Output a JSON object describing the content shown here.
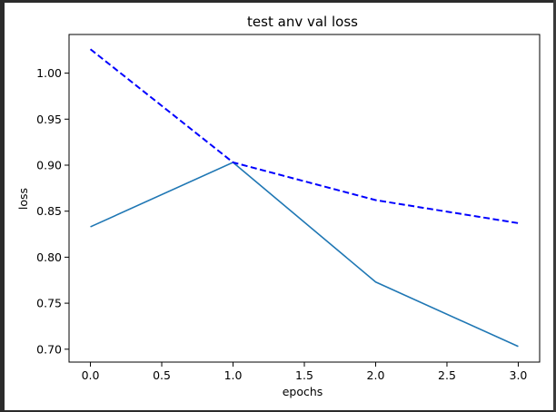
{
  "chart_data": {
    "type": "line",
    "title": "test anv val loss",
    "xlabel": "epochs",
    "ylabel": "loss",
    "x": [
      0.0,
      1.0,
      2.0,
      3.0
    ],
    "xlim": [
      -0.15,
      3.15
    ],
    "ylim": [
      0.686,
      1.042
    ],
    "xticks": [
      0.0,
      0.5,
      1.0,
      1.5,
      2.0,
      2.5,
      3.0
    ],
    "xtick_labels": [
      "0.0",
      "0.5",
      "1.0",
      "1.5",
      "2.0",
      "2.5",
      "3.0"
    ],
    "yticks": [
      0.7,
      0.75,
      0.8,
      0.85,
      0.9,
      0.95,
      1.0
    ],
    "ytick_labels": [
      "0.70",
      "0.75",
      "0.80",
      "0.85",
      "0.90",
      "0.95",
      "1.00"
    ],
    "grid": false,
    "series": [
      {
        "values": [
          0.833,
          0.903,
          0.773,
          0.703
        ],
        "color": "#1f77b4",
        "style": "solid"
      },
      {
        "values": [
          1.026,
          0.903,
          0.862,
          0.837
        ],
        "color": "#0000ff",
        "style": "dashed"
      }
    ]
  }
}
